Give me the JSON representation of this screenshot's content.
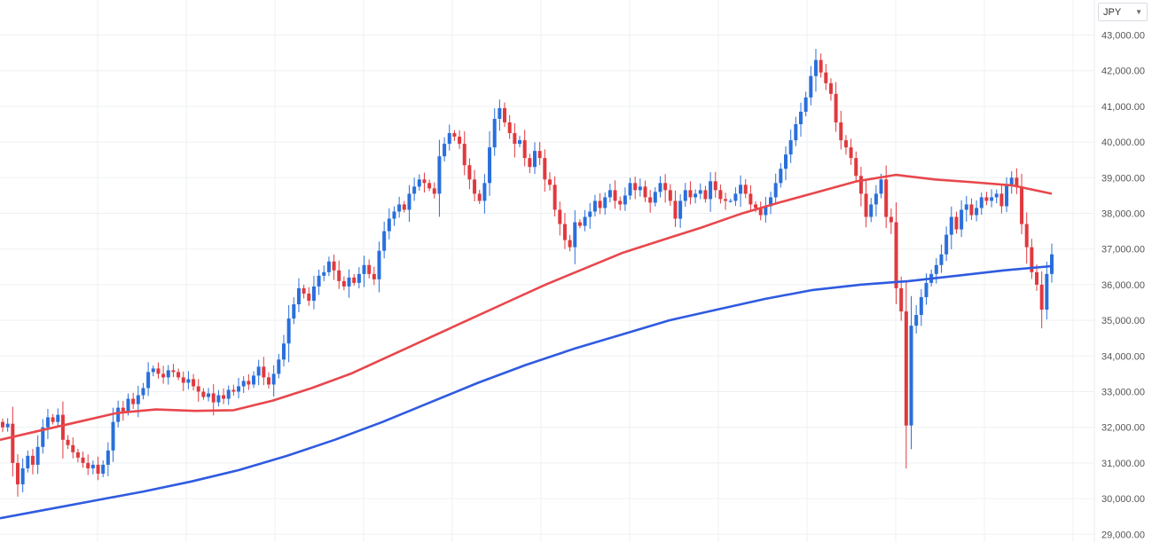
{
  "currency_selector": {
    "value": "JPY"
  },
  "chart_data": {
    "type": "candlestick",
    "title": "",
    "ylim": [
      28800,
      43500
    ],
    "y_ticks": [
      "43,000.00",
      "42,000.00",
      "41,000.00",
      "40,000.00",
      "39,000.00",
      "38,000.00",
      "37,000.00",
      "36,000.00",
      "35,000.00",
      "34,000.00",
      "33,000.00",
      "32,000.00",
      "31,000.00",
      "30,000.00",
      "29,000.00"
    ],
    "grid": true,
    "colors": {
      "up": "#2a6fdb",
      "down": "#e0393e",
      "ma_short": "#e8474c",
      "ma_long": "#2f5be0",
      "grid": "#eef0f3"
    },
    "candles_close": [
      32000,
      32100,
      31000,
      30400,
      30850,
      31200,
      30950,
      31450,
      32000,
      32280,
      32150,
      32350,
      31650,
      31500,
      31300,
      31150,
      31000,
      30850,
      30950,
      30700,
      30950,
      31350,
      32150,
      32550,
      32450,
      32800,
      32650,
      32900,
      33100,
      33550,
      33650,
      33500,
      33400,
      33600,
      33550,
      33400,
      33250,
      33350,
      33150,
      33000,
      32850,
      32950,
      32700,
      32900,
      32800,
      33050,
      33000,
      33150,
      33300,
      33200,
      33450,
      33700,
      33400,
      33200,
      33500,
      33900,
      34350,
      35050,
      35450,
      35900,
      35750,
      35550,
      35950,
      36250,
      36350,
      36650,
      36400,
      36100,
      35950,
      36200,
      36050,
      36300,
      36550,
      36300,
      36150,
      36950,
      37500,
      37850,
      38050,
      38250,
      38100,
      38550,
      38750,
      38950,
      38850,
      38700,
      38550,
      39600,
      39950,
      40250,
      40150,
      39950,
      39350,
      38950,
      38550,
      38350,
      38850,
      39850,
      40650,
      40950,
      40550,
      40250,
      39950,
      40050,
      39550,
      39300,
      39750,
      39550,
      38950,
      38800,
      38100,
      37700,
      37250,
      37050,
      37750,
      37650,
      37900,
      38050,
      38350,
      38150,
      38450,
      38650,
      38350,
      38250,
      38500,
      38850,
      38650,
      38750,
      38450,
      38300,
      38600,
      38850,
      38650,
      38350,
      37850,
      38350,
      38650,
      38450,
      38550,
      38650,
      38400,
      38900,
      38650,
      38400,
      38350,
      38350,
      38550,
      38800,
      38550,
      38250,
      38150,
      37950,
      38200,
      38450,
      38850,
      39250,
      39650,
      40050,
      40500,
      40850,
      41250,
      41850,
      42300,
      41950,
      41650,
      41350,
      40550,
      40050,
      39850,
      39550,
      39050,
      38550,
      37900,
      38250,
      38550,
      38950,
      37900,
      37750,
      35900,
      35250,
      32050,
      34850,
      35150,
      35650,
      36050,
      36300,
      36550,
      36850,
      37400,
      37900,
      37550,
      38100,
      38250,
      37950,
      38150,
      38450,
      38350,
      38450,
      38550,
      38200,
      38800,
      39000,
      38750,
      37700,
      37050,
      36350,
      36000,
      35300,
      36300,
      36850
    ],
    "ma_short": [
      31650,
      31900,
      32150,
      32400,
      32500,
      32460,
      32480,
      32750,
      33100,
      33500,
      34000,
      34500,
      35000,
      35500,
      36000,
      36450,
      36900,
      37250,
      37600,
      37980,
      38300,
      38600,
      38900,
      39080,
      38950,
      38870,
      38780,
      38550
    ],
    "ma_long": [
      29450,
      29700,
      29950,
      30200,
      30480,
      30800,
      31200,
      31650,
      32150,
      32700,
      33250,
      33750,
      34200,
      34600,
      35000,
      35300,
      35600,
      35850,
      36000,
      36100,
      36250,
      36400,
      36520
    ]
  }
}
